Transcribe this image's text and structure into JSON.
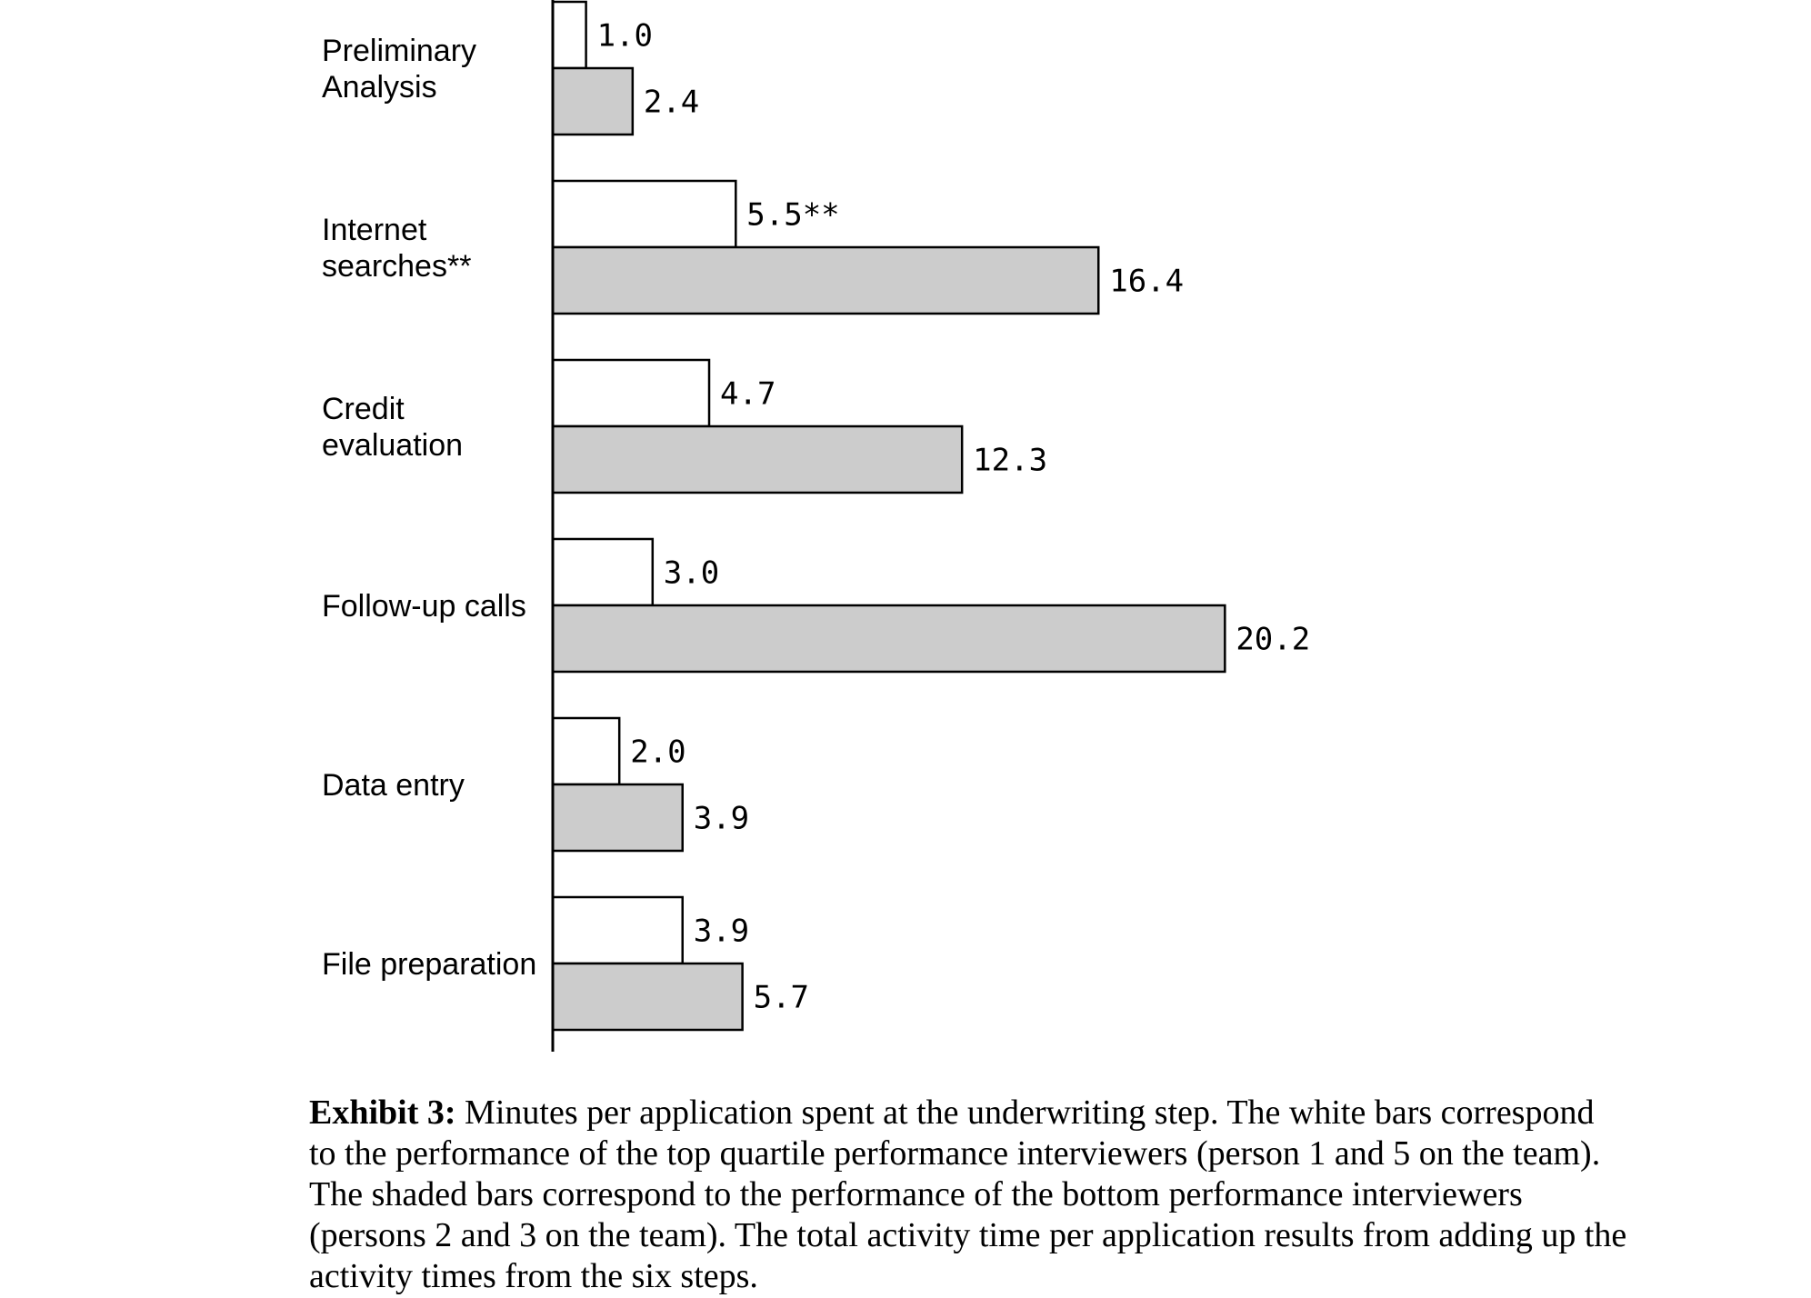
{
  "chart_data": {
    "type": "bar",
    "orientation": "horizontal",
    "categories": [
      [
        "Preliminary",
        "Analysis"
      ],
      [
        "Internet",
        "searches**"
      ],
      [
        "Credit",
        "evaluation"
      ],
      [
        "Follow-up calls"
      ],
      [
        "Data entry"
      ],
      [
        "File preparation"
      ]
    ],
    "series": [
      {
        "values": [
          1.0,
          5.5,
          4.7,
          3.0,
          2.0,
          3.9
        ],
        "labels": [
          "1.0",
          "5.5**",
          "4.7",
          "3.0",
          "2.0",
          "3.9"
        ],
        "color": "#ffffff"
      },
      {
        "values": [
          2.4,
          16.4,
          12.3,
          20.2,
          3.9,
          5.7
        ],
        "labels": [
          "2.4",
          "16.4",
          "12.3",
          "20.2",
          "3.9",
          "5.7"
        ],
        "color": "#cccccc"
      }
    ],
    "xlim": [
      0,
      20.2
    ],
    "grid": false,
    "legend": "none"
  },
  "caption": {
    "label": "Exhibit 3:",
    "text": " Minutes per application spent at the underwriting step. The white bars correspond to the performance of the top quartile performance interviewers (person 1 and 5 on the team). The shaded bars correspond to the performance of the bottom performance interviewers (persons 2 and 3 on the team). The total activity time per application results from adding up the activity times from the six steps."
  }
}
